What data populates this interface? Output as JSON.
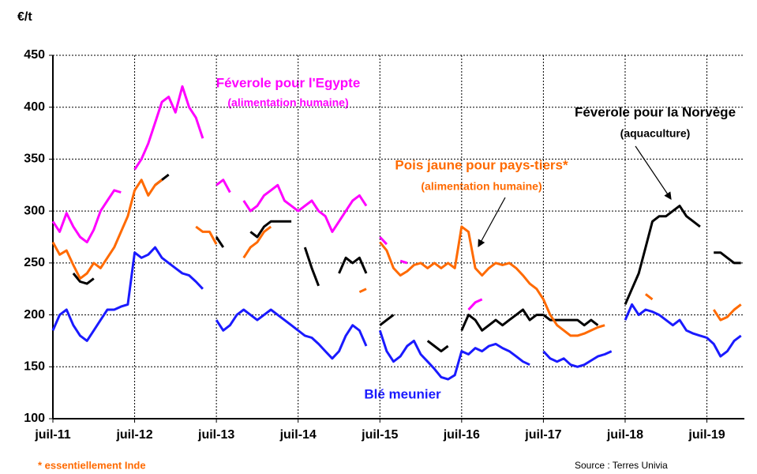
{
  "chart_data": {
    "type": "line",
    "unit_label": "€/t",
    "footnote": "* essentiellement Inde",
    "source": "Source : Terres Univia",
    "grid": true,
    "x": [
      0,
      1,
      2,
      3,
      4,
      5,
      6,
      7,
      8,
      9,
      10,
      11,
      12,
      13,
      14,
      15,
      16,
      17,
      18,
      19,
      20,
      21,
      22,
      23,
      24,
      25,
      26,
      27,
      28,
      29,
      30,
      31,
      32,
      33,
      34,
      35,
      36,
      37,
      38,
      39,
      40,
      41,
      42,
      43,
      44,
      45,
      46,
      47,
      48,
      49,
      50,
      51,
      52,
      53,
      54,
      55,
      56,
      57,
      58,
      59,
      60,
      61,
      62,
      63,
      64,
      65,
      66,
      67,
      68,
      69,
      70,
      71,
      72,
      73,
      74,
      75,
      76,
      77,
      78,
      79,
      80,
      81,
      82,
      83,
      84,
      85,
      86,
      87,
      88,
      89,
      90,
      91,
      92,
      93,
      94,
      95,
      96,
      97,
      98,
      99,
      100,
      101
    ],
    "xlim": [
      0,
      101.5
    ],
    "xticks": [
      {
        "value": 0,
        "label": "juil-11"
      },
      {
        "value": 12,
        "label": "juil-12"
      },
      {
        "value": 24,
        "label": "juil-13"
      },
      {
        "value": 36,
        "label": "juil-14"
      },
      {
        "value": 48,
        "label": "juil-15"
      },
      {
        "value": 60,
        "label": "juil-16"
      },
      {
        "value": 72,
        "label": "juil-17"
      },
      {
        "value": 84,
        "label": "juil-18"
      },
      {
        "value": 96,
        "label": "juil-19"
      }
    ],
    "ylim": [
      100,
      450
    ],
    "yticks": [
      100,
      150,
      200,
      250,
      300,
      350,
      400,
      450
    ],
    "series": [
      {
        "name": "Féverole pour l'Egypte",
        "sublabel": "(alimentation humaine)",
        "color": "#ff00ff",
        "values": [
          290,
          280,
          298,
          285,
          275,
          270,
          282,
          300,
          310,
          320,
          318,
          null,
          340,
          350,
          365,
          385,
          405,
          410,
          395,
          420,
          400,
          390,
          370,
          null,
          325,
          330,
          318,
          null,
          310,
          300,
          305,
          315,
          320,
          325,
          310,
          305,
          300,
          305,
          310,
          300,
          295,
          280,
          290,
          300,
          310,
          315,
          305,
          null,
          275,
          268,
          null,
          252,
          250,
          null,
          null,
          null,
          null,
          null,
          null,
          null,
          null,
          205,
          212,
          215,
          null,
          null,
          null,
          null,
          null,
          null,
          null,
          null,
          null,
          null,
          null,
          null,
          225,
          null,
          null,
          null,
          null,
          null,
          null,
          null,
          null,
          null,
          null,
          null,
          null,
          null,
          null,
          null,
          null,
          null,
          null,
          null,
          null,
          null,
          null,
          null,
          null,
          null
        ]
      },
      {
        "name": "Féverole pour la Norvège",
        "sublabel": "(aquaculture)",
        "color": "#000000",
        "values": [
          null,
          null,
          null,
          240,
          232,
          230,
          235,
          null,
          null,
          null,
          null,
          null,
          null,
          null,
          null,
          325,
          330,
          335,
          null,
          350,
          null,
          null,
          null,
          null,
          275,
          265,
          null,
          null,
          null,
          280,
          275,
          285,
          290,
          290,
          290,
          290,
          null,
          265,
          245,
          228,
          null,
          null,
          240,
          255,
          250,
          255,
          240,
          null,
          190,
          195,
          200,
          null,
          null,
          null,
          null,
          175,
          170,
          165,
          170,
          null,
          185,
          200,
          195,
          185,
          190,
          195,
          190,
          195,
          200,
          205,
          195,
          200,
          200,
          195,
          195,
          195,
          195,
          195,
          190,
          195,
          190,
          null,
          null,
          null,
          210,
          225,
          240,
          265,
          290,
          295,
          295,
          300,
          305,
          295,
          290,
          285,
          null,
          260,
          260,
          255,
          250,
          250
        ]
      },
      {
        "name": "Pois jaune pour pays-tiers*",
        "sublabel": "(alimentation humaine)",
        "color": "#ff6a00",
        "values": [
          270,
          258,
          262,
          248,
          235,
          240,
          250,
          245,
          255,
          265,
          280,
          295,
          320,
          330,
          315,
          325,
          330,
          null,
          null,
          315,
          null,
          285,
          280,
          280,
          268,
          null,
          245,
          null,
          255,
          265,
          270,
          280,
          285,
          null,
          null,
          null,
          null,
          null,
          null,
          null,
          245,
          null,
          null,
          null,
          null,
          222,
          225,
          null,
          270,
          262,
          245,
          238,
          242,
          248,
          250,
          245,
          250,
          245,
          250,
          245,
          285,
          280,
          245,
          238,
          245,
          250,
          248,
          250,
          245,
          238,
          230,
          225,
          215,
          200,
          190,
          185,
          180,
          180,
          182,
          185,
          188,
          190,
          null,
          null,
          null,
          null,
          null,
          220,
          215,
          null,
          null,
          null,
          195,
          null,
          null,
          null,
          null,
          205,
          195,
          198,
          205,
          210
        ]
      },
      {
        "name": "Blé meunier",
        "color": "#1a1aff",
        "values": [
          185,
          200,
          205,
          190,
          180,
          175,
          185,
          195,
          205,
          205,
          208,
          210,
          260,
          255,
          258,
          265,
          255,
          250,
          245,
          240,
          238,
          232,
          225,
          null,
          195,
          185,
          190,
          200,
          205,
          200,
          195,
          200,
          205,
          200,
          195,
          190,
          185,
          180,
          178,
          172,
          165,
          158,
          165,
          180,
          190,
          185,
          170,
          null,
          185,
          165,
          155,
          160,
          170,
          175,
          162,
          155,
          148,
          140,
          138,
          142,
          165,
          162,
          168,
          165,
          170,
          172,
          168,
          165,
          160,
          155,
          152,
          null,
          165,
          158,
          155,
          158,
          152,
          150,
          152,
          156,
          160,
          162,
          165,
          null,
          195,
          210,
          200,
          205,
          203,
          200,
          195,
          190,
          195,
          185,
          182,
          180,
          178,
          172,
          160,
          165,
          175,
          180
        ]
      }
    ]
  }
}
